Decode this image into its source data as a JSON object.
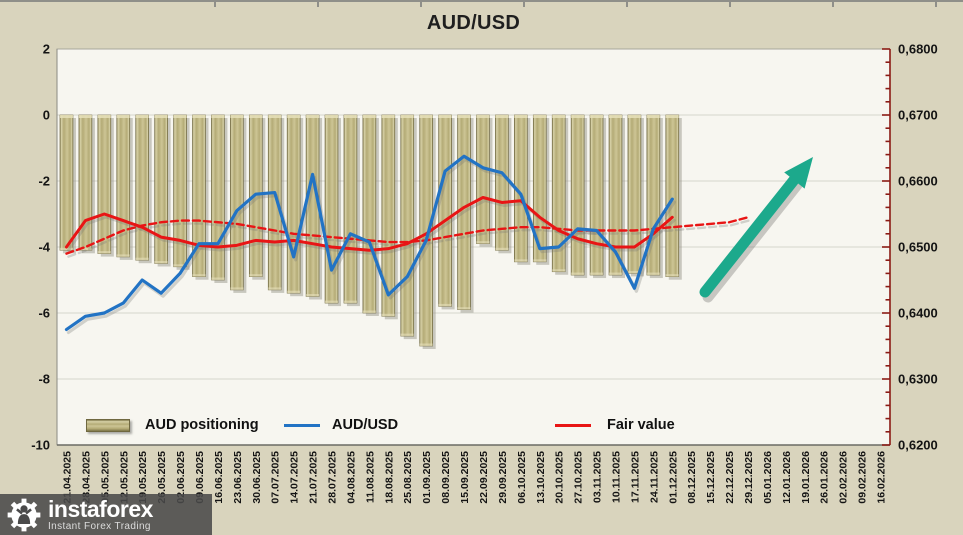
{
  "title": "AUD/USD",
  "watermark": {
    "brand": "instaforex",
    "tagline": "Instant Forex Trading"
  },
  "legend": [
    {
      "label": "AUD positioning",
      "type": "bar",
      "color": "#b3aa74"
    },
    {
      "label": "AUD/USD",
      "type": "line",
      "color": "#2273c4"
    },
    {
      "label": "Fair value",
      "type": "line",
      "color": "#e81515"
    }
  ],
  "chart_data": {
    "type": "combo",
    "categories": [
      "21.04.2025",
      "28.04.2025",
      "05.05.2025",
      "12.05.2025",
      "19.05.2025",
      "26.05.2025",
      "02.06.2025",
      "09.06.2025",
      "16.06.2025",
      "23.06.2025",
      "30.06.2025",
      "07.07.2025",
      "14.07.2025",
      "21.07.2025",
      "28.07.2025",
      "04.08.2025",
      "11.08.2025",
      "18.08.2025",
      "25.08.2025",
      "01.09.2025",
      "08.09.2025",
      "15.09.2025",
      "22.09.2025",
      "29.09.2025",
      "06.10.2025",
      "13.10.2025",
      "20.10.2025",
      "27.10.2025",
      "03.11.2025",
      "10.11.2025",
      "17.11.2025",
      "24.11.2025",
      "01.12.2025",
      "08.12.2025",
      "15.12.2025",
      "22.12.2025",
      "29.12.2025",
      "05.01.2026",
      "12.01.2026",
      "19.01.2026",
      "26.01.2026",
      "02.02.2026",
      "09.02.2026",
      "16.02.2026"
    ],
    "left_axis": {
      "ticks": [
        "2",
        "0",
        "-2",
        "-4",
        "-6",
        "-8",
        "-10"
      ],
      "range": [
        -10,
        2
      ],
      "gridlines": [
        0,
        -2,
        -4,
        -6,
        -8
      ]
    },
    "right_axis": {
      "ticks": [
        "0,6800",
        "0,6700",
        "0,6600",
        "0,6500",
        "0,6400",
        "0,6300",
        "0,6200"
      ],
      "range": [
        0.62,
        0.68
      ],
      "mapping_note": "price = 0.67 + 0.005 * left_scale_value"
    },
    "series": [
      {
        "name": "AUD positioning",
        "type": "bar",
        "axis": "left",
        "color": "#b3aa74",
        "values": [
          -4.1,
          -4.1,
          -4.2,
          -4.3,
          -4.4,
          -4.5,
          -4.6,
          -4.9,
          -5.0,
          -5.3,
          -4.9,
          -5.3,
          -5.4,
          -5.5,
          -5.7,
          -5.7,
          -6.0,
          -6.1,
          -6.7,
          -7.0,
          -5.8,
          -5.9,
          -3.9,
          -4.1,
          -4.45,
          -4.45,
          -4.75,
          -4.85,
          -4.85,
          -4.85,
          -4.8,
          -4.85,
          -4.9
        ]
      },
      {
        "name": "AUD/USD",
        "type": "line",
        "axis": "right",
        "color": "#2273c4",
        "values_left_scale": [
          -6.5,
          -6.1,
          -6.0,
          -5.7,
          -5.0,
          -5.4,
          -4.8,
          -3.9,
          -3.9,
          -2.9,
          -2.4,
          -2.35,
          -4.3,
          -1.8,
          -4.7,
          -3.6,
          -3.85,
          -5.45,
          -4.9,
          -3.8,
          -1.7,
          -1.25,
          -1.6,
          -1.75,
          -2.4,
          -4.05,
          -4.0,
          -3.45,
          -3.5,
          -4.15,
          -5.25,
          -3.45,
          -2.55
        ],
        "prices": [
          0.6375,
          0.6395,
          0.64,
          0.6415,
          0.645,
          0.643,
          0.646,
          0.6505,
          0.6505,
          0.6555,
          0.658,
          0.6583,
          0.6485,
          0.661,
          0.6465,
          0.652,
          0.6508,
          0.6428,
          0.6455,
          0.651,
          0.6615,
          0.6638,
          0.662,
          0.6613,
          0.658,
          0.6498,
          0.65,
          0.6528,
          0.6525,
          0.6493,
          0.6438,
          0.6528,
          0.6573
        ]
      },
      {
        "name": "Fair value",
        "type": "line",
        "axis": "right",
        "color": "#e81515",
        "values_left_scale": [
          -4.0,
          -3.2,
          -3.0,
          -3.2,
          -3.4,
          -3.7,
          -3.8,
          -3.95,
          -4.0,
          -3.95,
          -3.8,
          -3.85,
          -3.8,
          -3.9,
          -4.0,
          -4.05,
          -4.1,
          -4.05,
          -3.9,
          -3.6,
          -3.2,
          -2.8,
          -2.5,
          -2.65,
          -2.6,
          -3.1,
          -3.5,
          -3.75,
          -3.9,
          -4.0,
          -4.0,
          -3.6,
          -3.1
        ]
      },
      {
        "name": "Fair value forecast",
        "type": "line",
        "style": "dashed",
        "axis": "right",
        "color": "#e81515",
        "values_left_scale": [
          -4.2,
          -4.0,
          -3.75,
          -3.5,
          -3.35,
          -3.25,
          -3.2,
          -3.2,
          -3.25,
          -3.3,
          -3.4,
          -3.5,
          -3.6,
          -3.65,
          -3.7,
          -3.75,
          -3.8,
          -3.85,
          -3.85,
          -3.8,
          -3.7,
          -3.6,
          -3.5,
          -3.45,
          -3.4,
          -3.4,
          -3.45,
          -3.5,
          -3.5,
          -3.5,
          -3.5,
          -3.45,
          -3.4,
          -3.35,
          -3.3,
          -3.25,
          -3.1
        ]
      }
    ],
    "annotation": {
      "type": "arrow",
      "direction": "up-right",
      "color": "#1ca98c"
    }
  }
}
